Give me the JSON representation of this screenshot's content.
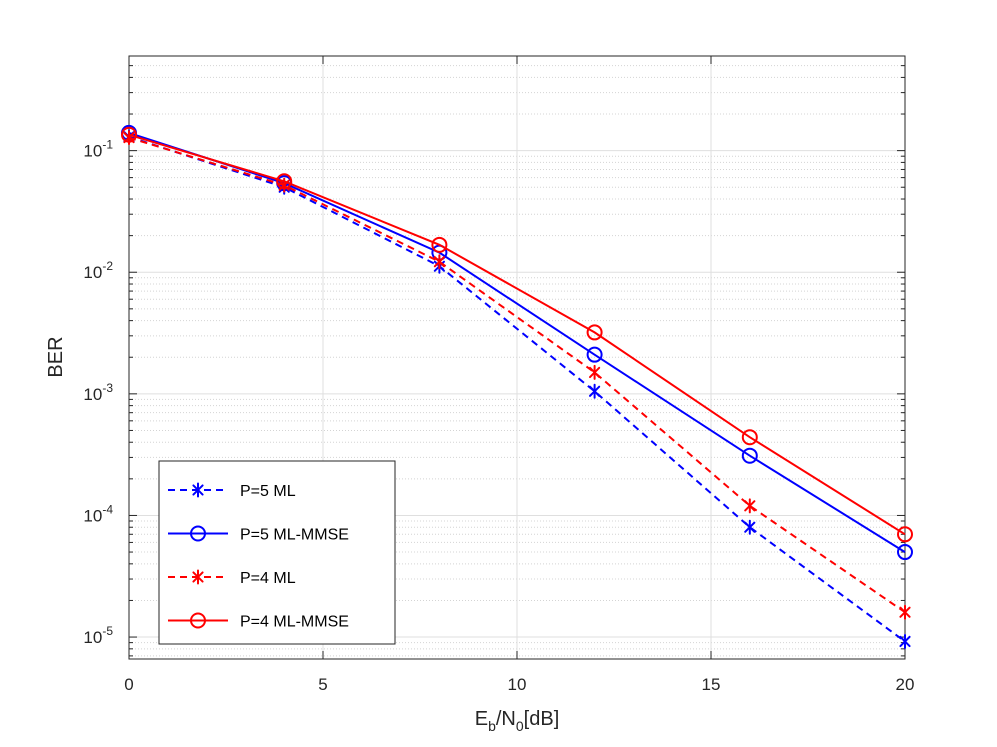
{
  "chart_data": {
    "type": "line",
    "title": "",
    "xlabel": {
      "main": "E",
      "sub1": "b",
      "mid": "/N",
      "sub2": "0",
      "tail": "[dB]"
    },
    "ylabel": "BER",
    "xlim": [
      0,
      20
    ],
    "ylim": [
      6.6e-06,
      0.6
    ],
    "yscale": "log",
    "grid": true,
    "minor_grid": true,
    "legend_position": "bottom-left",
    "xticks": [
      {
        "value": 0,
        "label": "0"
      },
      {
        "value": 5,
        "label": "5"
      },
      {
        "value": 10,
        "label": "10"
      },
      {
        "value": 15,
        "label": "15"
      },
      {
        "value": 20,
        "label": "20"
      }
    ],
    "yticks": [
      {
        "value": 1e-05,
        "base": "10",
        "exp": "-5"
      },
      {
        "value": 0.0001,
        "base": "10",
        "exp": "-4"
      },
      {
        "value": 0.001,
        "base": "10",
        "exp": "-3"
      },
      {
        "value": 0.01,
        "base": "10",
        "exp": "-2"
      },
      {
        "value": 0.1,
        "base": "10",
        "exp": "-1"
      }
    ],
    "x": [
      0,
      4,
      8,
      12,
      16,
      20
    ],
    "series": [
      {
        "name": "P=5 ML",
        "color": "#0000ff",
        "dash": "dashed",
        "marker": "asterisk",
        "values": [
          0.13,
          0.05,
          0.0112,
          0.00105,
          8e-05,
          9.2e-06
        ]
      },
      {
        "name": "P=5 ML-MMSE",
        "color": "#0000ff",
        "dash": "solid",
        "marker": "circle",
        "values": [
          0.14,
          0.054,
          0.0145,
          0.0021,
          0.00031,
          5e-05
        ]
      },
      {
        "name": "P=4 ML",
        "color": "#ff0000",
        "dash": "dashed",
        "marker": "asterisk",
        "values": [
          0.128,
          0.052,
          0.0122,
          0.0015,
          0.00012,
          1.6e-05
        ]
      },
      {
        "name": "P=4 ML-MMSE",
        "color": "#ff0000",
        "dash": "solid",
        "marker": "circle",
        "values": [
          0.135,
          0.056,
          0.0168,
          0.0032,
          0.00044,
          7e-05
        ]
      }
    ]
  }
}
